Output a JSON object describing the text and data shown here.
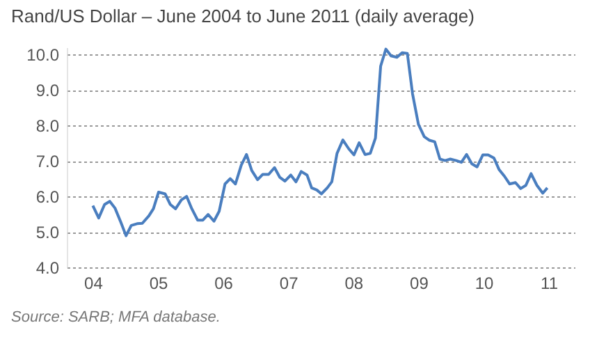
{
  "chart_data": {
    "type": "line",
    "title": "Rand/US Dollar – June 2004 to June 2011 (daily average)",
    "x": [
      2004.0,
      2004.09,
      2004.18,
      2004.26,
      2004.34,
      2004.43,
      2004.51,
      2004.59,
      2004.68,
      2004.76,
      2004.86,
      2004.93,
      2005.01,
      2005.11,
      2005.19,
      2005.27,
      2005.36,
      2005.44,
      2005.52,
      2005.61,
      2005.69,
      2005.77,
      2005.86,
      2005.94,
      2006.03,
      2006.11,
      2006.19,
      2006.28,
      2006.36,
      2006.44,
      2006.53,
      2006.61,
      2006.7,
      2006.79,
      2006.87,
      2006.95,
      2007.04,
      2007.12,
      2007.2,
      2007.29,
      2007.36,
      2007.44,
      2007.51,
      2007.6,
      2007.67,
      2007.75,
      2007.84,
      2007.93,
      2008.01,
      2008.09,
      2008.18,
      2008.26,
      2008.34,
      2008.42,
      2008.5,
      2008.58,
      2008.67,
      2008.75,
      2008.83,
      2008.91,
      2009.0,
      2009.09,
      2009.17,
      2009.25,
      2009.33,
      2009.41,
      2009.49,
      2009.58,
      2009.66,
      2009.74,
      2009.82,
      2009.9,
      2009.99,
      2010.07,
      2010.16,
      2010.24,
      2010.32,
      2010.4,
      2010.49,
      2010.57,
      2010.65,
      2010.73,
      2010.82,
      2010.91,
      2010.98
    ],
    "series": [
      {
        "color": "#4a7ebf",
        "values": [
          5.74,
          5.39,
          5.77,
          5.86,
          5.67,
          5.27,
          4.89,
          5.18,
          5.23,
          5.24,
          5.45,
          5.65,
          6.12,
          6.07,
          5.77,
          5.65,
          5.9,
          6.0,
          5.65,
          5.33,
          5.33,
          5.49,
          5.3,
          5.58,
          6.35,
          6.5,
          6.35,
          6.88,
          7.18,
          6.73,
          6.47,
          6.62,
          6.62,
          6.81,
          6.54,
          6.43,
          6.6,
          6.41,
          6.7,
          6.6,
          6.24,
          6.18,
          6.07,
          6.24,
          6.41,
          7.21,
          7.59,
          7.34,
          7.17,
          7.51,
          7.18,
          7.21,
          7.64,
          9.67,
          10.15,
          9.96,
          9.92,
          10.05,
          10.03,
          8.89,
          8.03,
          7.68,
          7.58,
          7.54,
          7.05,
          7.01,
          7.05,
          7.01,
          6.96,
          7.18,
          6.92,
          6.83,
          7.17,
          7.17,
          7.08,
          6.75,
          6.57,
          6.35,
          6.39,
          6.22,
          6.31,
          6.64,
          6.31,
          6.09,
          6.24
        ]
      }
    ],
    "xlim": [
      2003.6,
      2011.4
    ],
    "xticks": [
      {
        "value": 2004,
        "label": "04"
      },
      {
        "value": 2005,
        "label": "05"
      },
      {
        "value": 2006,
        "label": "06"
      },
      {
        "value": 2007,
        "label": "07"
      },
      {
        "value": 2008,
        "label": "08"
      },
      {
        "value": 2009,
        "label": "09"
      },
      {
        "value": 2010,
        "label": "10"
      },
      {
        "value": 2011,
        "label": "11"
      }
    ],
    "ylim": [
      4,
      10.2
    ],
    "yticks": [
      {
        "value": 4,
        "label": "4.0"
      },
      {
        "value": 5,
        "label": "5.0"
      },
      {
        "value": 6,
        "label": "6.0"
      },
      {
        "value": 7,
        "label": "7.0"
      },
      {
        "value": 8,
        "label": "8.0"
      },
      {
        "value": 9,
        "label": "9.0"
      },
      {
        "value": 10,
        "label": "10.0"
      }
    ],
    "grid": "y",
    "line_style": "solid",
    "annotations": [
      "Source: SARB; MFA database."
    ]
  }
}
